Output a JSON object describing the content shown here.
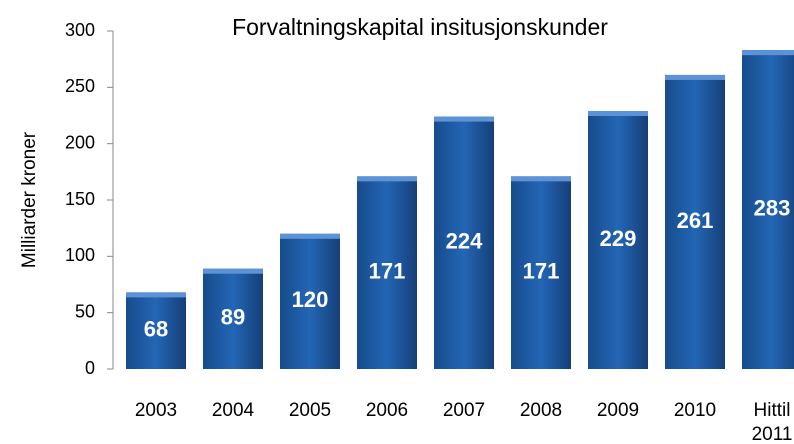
{
  "chart_data": {
    "type": "bar",
    "title": "Forvaltningskapital insitusjonskunder",
    "y_label": "Milliarder kroner",
    "categories": [
      "2003",
      "2004",
      "2005",
      "2006",
      "2007",
      "2008",
      "2009",
      "2010",
      "Hittil 2011"
    ],
    "values": [
      68,
      89,
      120,
      171,
      224,
      171,
      229,
      261,
      283
    ],
    "color": "#1f5fa8",
    "ylim": [
      0,
      300
    ],
    "yticks": [
      0,
      50,
      100,
      150,
      200,
      250,
      300
    ],
    "grid": false
  }
}
